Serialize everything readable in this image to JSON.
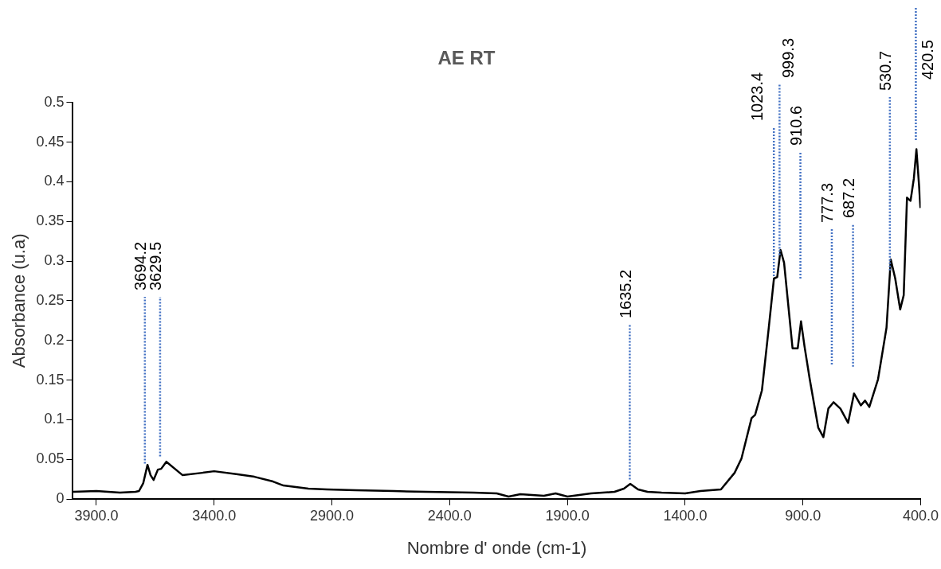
{
  "chart_data": {
    "type": "line",
    "title": "AE RT",
    "xlabel": "Nombre d' onde (cm-1)",
    "ylabel": "Absorbance (u.a)",
    "xlim": [
      4000,
      400
    ],
    "ylim": [
      0,
      0.5
    ],
    "xticks": [
      {
        "value": 3900,
        "label": "3900.0"
      },
      {
        "value": 3400,
        "label": "3400.0"
      },
      {
        "value": 2900,
        "label": "2900.0"
      },
      {
        "value": 2400,
        "label": "2400.0"
      },
      {
        "value": 1900,
        "label": "1900.0"
      },
      {
        "value": 1400,
        "label": "1400.0"
      },
      {
        "value": 900,
        "label": "900.0"
      },
      {
        "value": 400,
        "label": "400.0"
      }
    ],
    "yticks": [
      0,
      0.05,
      0.1,
      0.15,
      0.2,
      0.25,
      0.3,
      0.35,
      0.4,
      0.45,
      0.5
    ],
    "grid": false,
    "legend": false,
    "marker": "none",
    "line_style": "solid",
    "series": [
      {
        "color": "#000000",
        "x": [
          3998,
          3900,
          3800,
          3734,
          3719,
          3701,
          3683,
          3670,
          3657,
          3639,
          3625,
          3603,
          3534,
          3450,
          3400,
          3300,
          3229,
          3150,
          3106,
          3000,
          2921,
          2800,
          2638,
          2500,
          2300,
          2200,
          2150,
          2100,
          2000,
          1950,
          1900,
          1800,
          1700,
          1660,
          1633,
          1600,
          1560,
          1500,
          1400,
          1335,
          1248,
          1190,
          1161,
          1118,
          1103,
          1074,
          1045,
          1023,
          1009,
          995,
          980,
          944,
          922,
          908,
          893,
          871,
          835,
          813,
          792,
          770,
          741,
          708,
          683,
          654,
          636,
          618,
          581,
          545,
          527,
          508,
          487,
          472,
          458,
          443,
          429,
          418,
          407,
          401
        ],
        "values": [
          0.009,
          0.01,
          0.008,
          0.009,
          0.01,
          0.02,
          0.043,
          0.03,
          0.024,
          0.037,
          0.038,
          0.047,
          0.03,
          0.033,
          0.035,
          0.031,
          0.028,
          0.022,
          0.017,
          0.013,
          0.012,
          0.011,
          0.01,
          0.009,
          0.008,
          0.007,
          0.003,
          0.006,
          0.004,
          0.007,
          0.003,
          0.007,
          0.009,
          0.013,
          0.019,
          0.012,
          0.009,
          0.008,
          0.007,
          0.01,
          0.012,
          0.033,
          0.051,
          0.102,
          0.106,
          0.137,
          0.216,
          0.278,
          0.28,
          0.314,
          0.298,
          0.19,
          0.19,
          0.224,
          0.192,
          0.151,
          0.09,
          0.078,
          0.114,
          0.122,
          0.114,
          0.096,
          0.133,
          0.118,
          0.124,
          0.116,
          0.151,
          0.216,
          0.302,
          0.278,
          0.239,
          0.257,
          0.38,
          0.376,
          0.404,
          0.441,
          0.396,
          0.367
        ]
      }
    ],
    "ref_lines": [
      {
        "axis": "x",
        "value": 3694.2,
        "label": "3694.2",
        "color": "#4472c4",
        "line_style": "dotted"
      },
      {
        "axis": "x",
        "value": 3629.5,
        "label": "3629.5",
        "color": "#4472c4",
        "line_style": "dotted"
      },
      {
        "axis": "x",
        "value": 1635.2,
        "label": "1635.2",
        "color": "#4472c4",
        "line_style": "dotted"
      },
      {
        "axis": "x",
        "value": 1023.4,
        "label": "1023.4",
        "color": "#4472c4",
        "line_style": "dotted"
      },
      {
        "axis": "x",
        "value": 999.3,
        "label": "999.3",
        "color": "#4472c4",
        "line_style": "dotted"
      },
      {
        "axis": "x",
        "value": 910.6,
        "label": "910.6",
        "color": "#4472c4",
        "line_style": "dotted"
      },
      {
        "axis": "x",
        "value": 777.3,
        "label": "777.3",
        "color": "#4472c4",
        "line_style": "dotted"
      },
      {
        "axis": "x",
        "value": 687.2,
        "label": "687.2",
        "color": "#4472c4",
        "line_style": "dotted"
      },
      {
        "axis": "x",
        "value": 530.7,
        "label": "530.7",
        "color": "#4472c4",
        "line_style": "dotted"
      },
      {
        "axis": "x",
        "value": 420.5,
        "label": "420.5",
        "color": "#4472c4",
        "line_style": "dotted"
      }
    ]
  }
}
